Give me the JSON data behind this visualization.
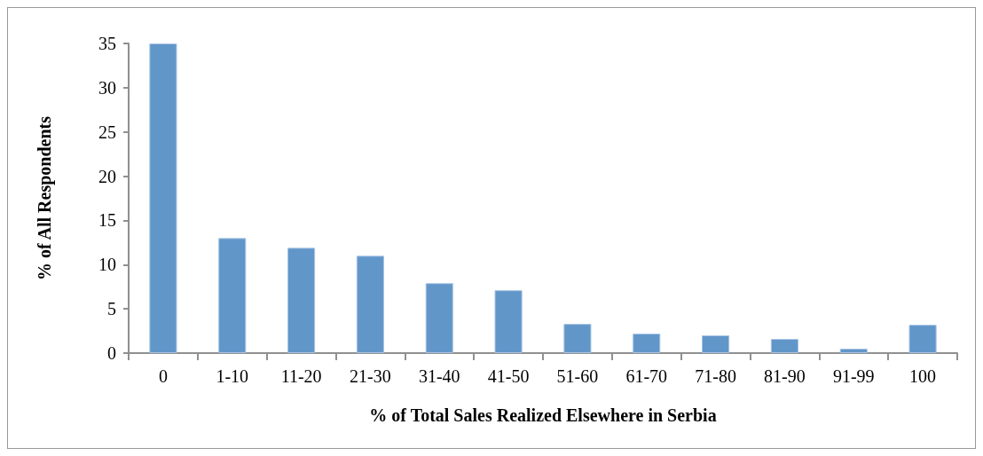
{
  "chart_data": {
    "type": "bar",
    "xlabel": "% of Total Sales Realized Elsewhere in Serbia",
    "ylabel": "% of All Respondents",
    "categories": [
      "0",
      "1-10",
      "11-20",
      "21-30",
      "31-40",
      "41-50",
      "51-60",
      "61-70",
      "71-80",
      "81-90",
      "91-99",
      "100"
    ],
    "values": [
      35,
      13,
      11.9,
      11,
      7.9,
      7.1,
      3.3,
      2.2,
      2.0,
      1.6,
      0.5,
      3.2
    ],
    "color": "#6196c9",
    "ylim": [
      0,
      35
    ],
    "yticks": [
      0,
      5,
      10,
      15,
      20,
      25,
      30,
      35
    ],
    "grid": false
  }
}
